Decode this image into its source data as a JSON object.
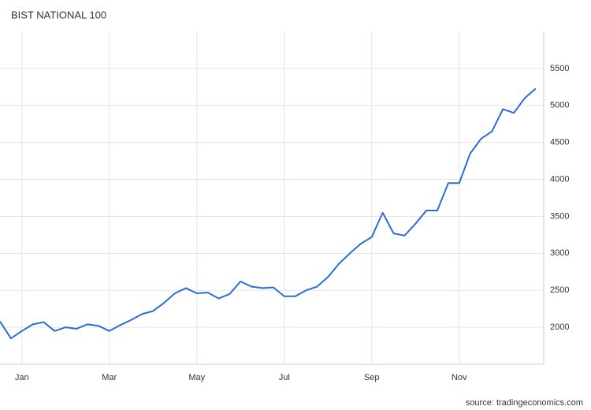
{
  "chart_data": {
    "type": "line",
    "title": "BIST NATIONAL 100",
    "source": "source: tradingeconomics.com",
    "categories": [
      null,
      null,
      "Jan",
      null,
      null,
      null,
      null,
      null,
      null,
      null,
      "Mar",
      null,
      null,
      null,
      null,
      null,
      null,
      null,
      "May",
      null,
      null,
      null,
      null,
      null,
      null,
      null,
      "Jul",
      null,
      null,
      null,
      null,
      null,
      null,
      null,
      "Sep",
      null,
      null,
      null,
      null,
      null,
      null,
      null,
      "Nov",
      null,
      null,
      null,
      null,
      null,
      null,
      null
    ],
    "series": [
      {
        "name": "BIST NATIONAL 100",
        "color": "#2f6bd8",
        "values": [
          2080,
          1850,
          1950,
          2040,
          2070,
          1950,
          2000,
          1980,
          2040,
          2020,
          1950,
          2030,
          2100,
          2180,
          2220,
          2330,
          2460,
          2530,
          2460,
          2470,
          2390,
          2450,
          2620,
          2550,
          2530,
          2540,
          2420,
          2420,
          2500,
          2550,
          2680,
          2860,
          3000,
          3130,
          3220,
          3550,
          3270,
          3240,
          3400,
          3580,
          3580,
          3950,
          3950,
          4350,
          4550,
          4650,
          4950,
          4900,
          5100,
          5230
        ]
      }
    ],
    "ylim": [
      1500,
      6000
    ],
    "yticks": [
      2000,
      2500,
      3000,
      3500,
      4000,
      4500,
      5000,
      5500
    ],
    "grid": true
  }
}
